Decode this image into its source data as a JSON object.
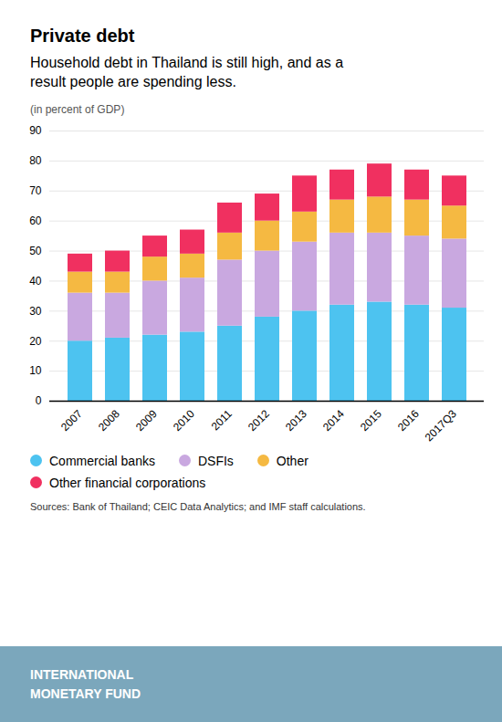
{
  "chart_data": {
    "type": "bar",
    "title": "Private debt",
    "subtitle": "Household debt in Thailand is still high, and as a\nresult people are spending less.",
    "y_label": "(in percent of GDP)",
    "categories": [
      "2007",
      "2008",
      "2009",
      "2010",
      "2011",
      "2012",
      "2013",
      "2014",
      "2015",
      "2016",
      "2017Q3"
    ],
    "series": [
      {
        "name": "Commercial banks",
        "color": "#4DC3F0",
        "values": [
          20,
          21,
          22,
          23,
          25,
          28,
          30,
          32,
          33,
          32,
          31
        ]
      },
      {
        "name": "DSFIs",
        "color": "#C9A8E0",
        "values": [
          16,
          15,
          18,
          18,
          22,
          22,
          23,
          24,
          23,
          23,
          23
        ]
      },
      {
        "name": "Other",
        "color": "#F5B942",
        "values": [
          7,
          7,
          8,
          8,
          9,
          10,
          10,
          11,
          12,
          12,
          11
        ]
      },
      {
        "name": "Other financial corporations",
        "color": "#F03060",
        "values": [
          6,
          7,
          7,
          8,
          10,
          9,
          12,
          10,
          11,
          10,
          10
        ]
      }
    ],
    "stacked": true,
    "ylim": [
      0,
      90
    ],
    "yticks": [
      0,
      10,
      20,
      30,
      40,
      50,
      60,
      70,
      80,
      90
    ],
    "grid": true,
    "legend": "bottom",
    "source": "Sources: Bank of Thailand; CEIC Data Analytics; and IMF staff calculations.",
    "footer": "INTERNATIONAL\nMONETARY FUND"
  }
}
